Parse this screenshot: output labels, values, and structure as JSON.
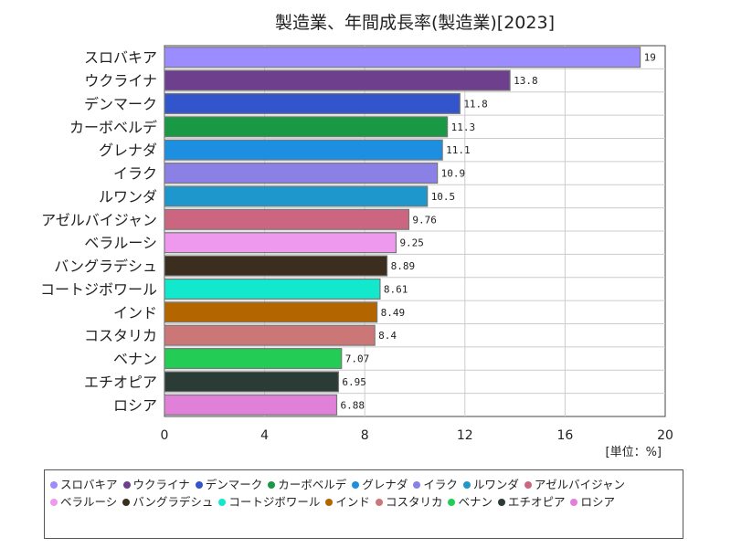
{
  "chart_data": {
    "type": "bar",
    "orientation": "horizontal",
    "title": "製造業、年間成長率(製造業)[2023]",
    "unit_label": "[単位：%]",
    "categories": [
      "スロバキア",
      "ウクライナ",
      "デンマーク",
      "カーボベルデ",
      "グレナダ",
      "イラク",
      "ルワンダ",
      "アゼルバイジャン",
      "ベラルーシ",
      "バングラデシュ",
      "コートジボワール",
      "インド",
      "コスタリカ",
      "ベナン",
      "エチオピア",
      "ロシア"
    ],
    "values": [
      19,
      13.8,
      11.8,
      11.3,
      11.1,
      10.9,
      10.5,
      9.76,
      9.25,
      8.89,
      8.61,
      8.49,
      8.4,
      7.07,
      6.95,
      6.88
    ],
    "value_labels": [
      "19",
      "13.8",
      "11.8",
      "11.3",
      "11.1",
      "10.9",
      "10.5",
      "9.76",
      "9.25",
      "8.89",
      "8.61",
      "8.49",
      "8.4",
      "7.07",
      "6.95",
      "6.88"
    ],
    "colors": [
      "#9b8cff",
      "#6e3f8c",
      "#3355cc",
      "#1a9944",
      "#1d8fe0",
      "#8a80e6",
      "#1e97cc",
      "#cc6680",
      "#ee99ee",
      "#3b2e1e",
      "#11e8cc",
      "#b36600",
      "#cc7777",
      "#22cc55",
      "#2b3b36",
      "#e080d8"
    ],
    "xlim": [
      0,
      20
    ],
    "xticks": [
      "0",
      "4",
      "8",
      "12",
      "16",
      "20"
    ],
    "grid": true,
    "legend_position": "bottom"
  }
}
